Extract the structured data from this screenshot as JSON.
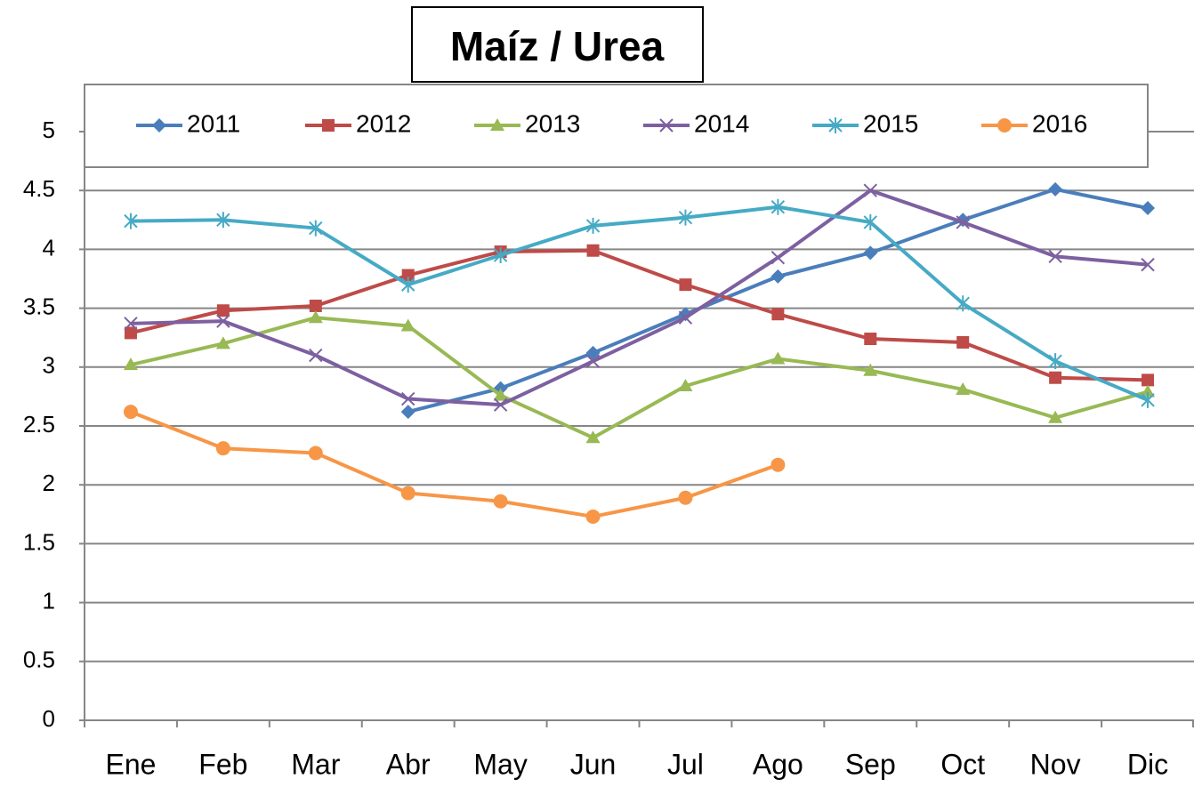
{
  "chart_data": {
    "type": "line",
    "title": "Maíz / Urea",
    "categories": [
      "Ene",
      "Feb",
      "Mar",
      "Abr",
      "May",
      "Jun",
      "Jul",
      "Ago",
      "Sep",
      "Oct",
      "Nov",
      "Dic"
    ],
    "series": [
      {
        "name": "2011",
        "color": "#4a7ebb",
        "marker": "diamond",
        "values": [
          null,
          null,
          null,
          2.62,
          2.82,
          3.12,
          3.45,
          3.77,
          3.97,
          4.25,
          4.51,
          4.35
        ]
      },
      {
        "name": "2012",
        "color": "#be4b48",
        "marker": "square",
        "values": [
          3.29,
          3.48,
          3.52,
          3.78,
          3.98,
          3.99,
          3.7,
          3.45,
          3.24,
          3.21,
          2.91,
          2.89
        ]
      },
      {
        "name": "2013",
        "color": "#98b954",
        "marker": "triangle",
        "values": [
          3.02,
          3.2,
          3.42,
          3.35,
          2.76,
          2.4,
          2.84,
          3.07,
          2.97,
          2.81,
          2.57,
          2.79
        ]
      },
      {
        "name": "2014",
        "color": "#7d60a0",
        "marker": "x",
        "values": [
          3.37,
          3.39,
          3.1,
          2.73,
          2.68,
          3.05,
          3.42,
          3.93,
          4.5,
          4.23,
          3.94,
          3.87
        ]
      },
      {
        "name": "2015",
        "color": "#46aac5",
        "marker": "star",
        "values": [
          4.24,
          4.25,
          4.18,
          3.7,
          3.95,
          4.2,
          4.27,
          4.36,
          4.23,
          3.54,
          3.05,
          2.72
        ]
      },
      {
        "name": "2016",
        "color": "#f79646",
        "marker": "circle",
        "values": [
          2.62,
          2.31,
          2.27,
          1.93,
          1.86,
          1.73,
          1.89,
          2.17,
          null,
          null,
          null,
          null
        ]
      }
    ],
    "ylim": [
      0,
      5
    ],
    "yticks": [
      0,
      0.5,
      1,
      1.5,
      2,
      2.5,
      3,
      3.5,
      4,
      4.5,
      5
    ],
    "grid": true,
    "legend": "top"
  }
}
